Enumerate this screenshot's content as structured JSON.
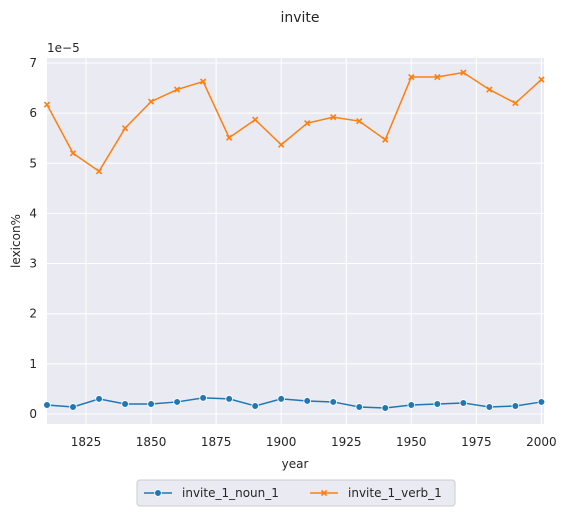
{
  "chart_data": {
    "type": "line",
    "title": "invite",
    "xlabel": "year",
    "ylabel": "lexicon%",
    "y_scale_label": "1e−5",
    "y_scale": 1e-05,
    "xlim": [
      1810,
      2001
    ],
    "ylim": [
      -0.2,
      7.1
    ],
    "x_ticks": [
      1825,
      1850,
      1875,
      1900,
      1925,
      1950,
      1975,
      2000
    ],
    "y_ticks": [
      0,
      1,
      2,
      3,
      4,
      5,
      6,
      7
    ],
    "grid": true,
    "legend_position": "bottom-center",
    "x": [
      1810,
      1820,
      1830,
      1840,
      1850,
      1860,
      1870,
      1880,
      1890,
      1900,
      1910,
      1920,
      1930,
      1940,
      1950,
      1960,
      1970,
      1980,
      1990,
      2000
    ],
    "series": [
      {
        "name": "invite_1_noun_1",
        "color": "#1f77b4",
        "marker": "circle",
        "values": [
          0.18,
          0.14,
          0.3,
          0.2,
          0.2,
          0.24,
          0.32,
          0.3,
          0.16,
          0.3,
          0.26,
          0.24,
          0.14,
          0.12,
          0.18,
          0.2,
          0.22,
          0.14,
          0.16,
          0.24
        ]
      },
      {
        "name": "invite_1_verb_1",
        "color": "#ff7f0e",
        "marker": "x",
        "values": [
          6.17,
          5.2,
          4.84,
          5.7,
          6.23,
          6.47,
          6.63,
          5.51,
          5.87,
          5.37,
          5.8,
          5.92,
          5.84,
          5.47,
          6.72,
          6.72,
          6.81,
          6.47,
          6.2,
          6.67
        ]
      }
    ]
  }
}
